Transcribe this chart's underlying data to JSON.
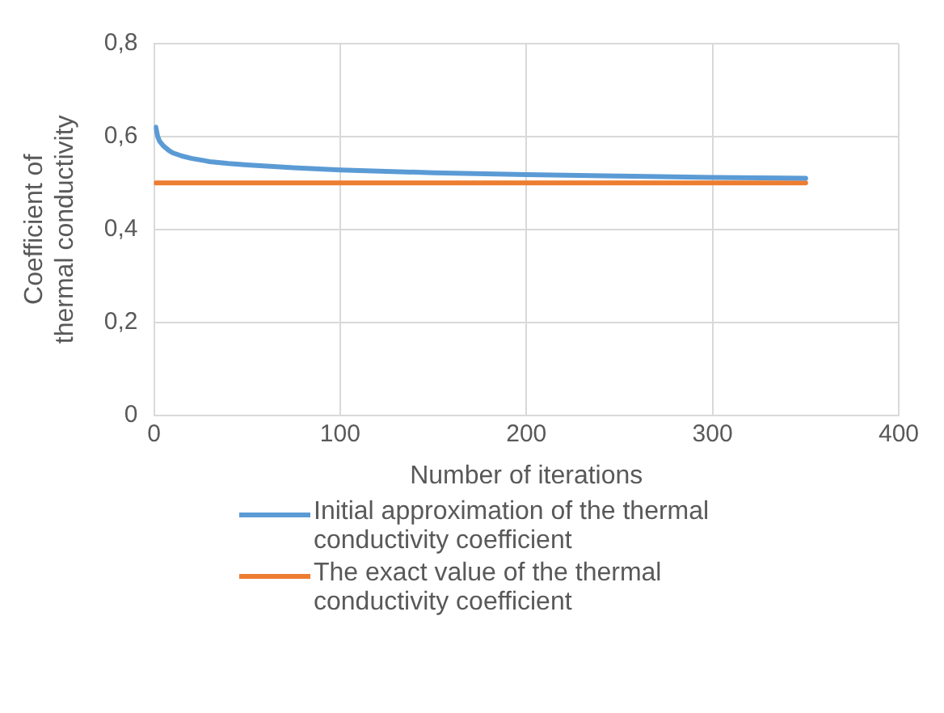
{
  "chart_data": {
    "type": "line",
    "xlabel": "Number of iterations",
    "ylabel": "Coefficient of thermal conductivity",
    "xlim": [
      0,
      400
    ],
    "xticks": [
      0,
      100,
      200,
      300,
      400
    ],
    "ylim": [
      0,
      0.8
    ],
    "yticks": [
      {
        "value": 0,
        "label": "0"
      },
      {
        "value": 0.2,
        "label": "0,2"
      },
      {
        "value": 0.4,
        "label": "0,4"
      },
      {
        "value": 0.6,
        "label": "0,6"
      },
      {
        "value": 0.8,
        "label": "0,8"
      }
    ],
    "grid": true,
    "legend": "bottom",
    "marker": "none",
    "line_style": "solid",
    "series": [
      {
        "name": "Initial approximation of the thermal conductivity coefficient",
        "color": "#5b9bd5",
        "x": [
          1,
          2,
          3,
          5,
          8,
          10,
          15,
          20,
          30,
          40,
          50,
          75,
          100,
          150,
          200,
          250,
          300,
          350
        ],
        "values": [
          0.62,
          0.6,
          0.59,
          0.58,
          0.57,
          0.565,
          0.558,
          0.553,
          0.546,
          0.542,
          0.539,
          0.533,
          0.528,
          0.522,
          0.518,
          0.515,
          0.512,
          0.51
        ]
      },
      {
        "name": "The exact value of the thermal conductivity coefficient",
        "color": "#ed7d31",
        "x": [
          1,
          350
        ],
        "values": [
          0.5,
          0.5
        ]
      }
    ]
  }
}
